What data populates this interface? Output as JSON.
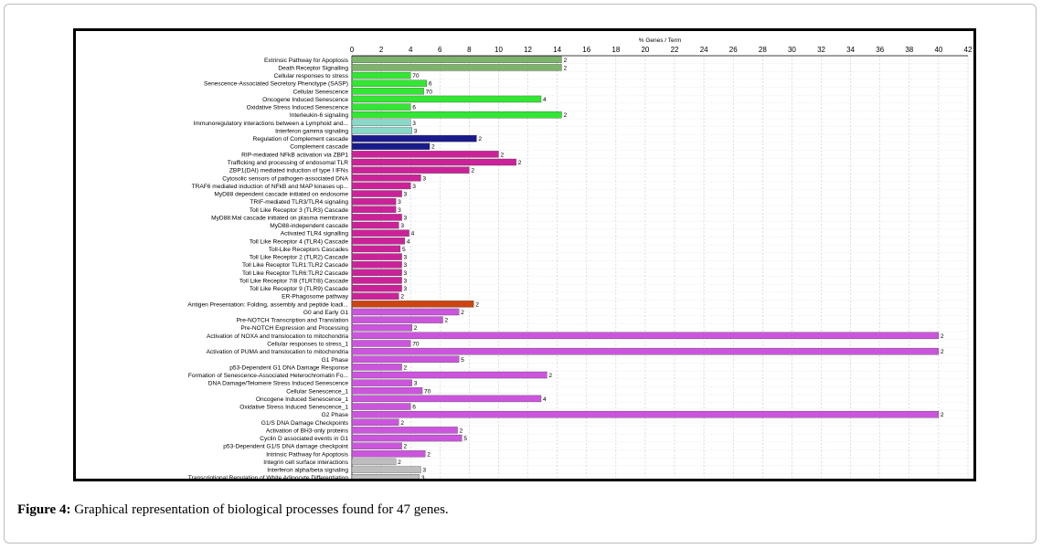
{
  "caption": {
    "label": "Figure 4:",
    "text": " Graphical representation of biological processes found for 47 genes."
  },
  "chart_data": {
    "type": "bar",
    "orientation": "horizontal",
    "title": "% Genes / Term",
    "xlim": [
      0,
      42
    ],
    "xticks": [
      0,
      2,
      4,
      6,
      8,
      10,
      12,
      14,
      16,
      18,
      20,
      22,
      24,
      26,
      28,
      30,
      32,
      34,
      36,
      38,
      40,
      42
    ],
    "grid": true,
    "categories": [
      "Extrinsic Pathway for Apoptosis",
      "Death Receptor Signalling",
      "Cellular responses to stress",
      "Senescence-Associated Secretory Phenotype (SASP)",
      "Cellular Senescence",
      "Oncogene Induced Senescence",
      "Oxidative Stress Induced Senescence",
      "Interleukin-6 signaling",
      "Immunoregulatory interactions between a Lymphoid and...",
      "Interferon gamma signaling",
      "Regulation of Complement cascade",
      "Complement cascade",
      "RIP-mediated NFkB activation via ZBP1",
      "Trafficking and processing of endosomal TLR",
      "ZBP1(DAI) mediated induction of type I IFNs",
      "Cytosolic sensors of pathogen-associated DNA",
      "TRAF6 mediated induction of NFkB and MAP kinases up...",
      "MyD88 dependent cascade initiated on endosome",
      "TRIF-mediated TLR3/TLR4 signaling",
      "Toll Like Receptor 3 (TLR3) Cascade",
      "MyD88:Mal cascade initiated on plasma membrane",
      "MyD88-independent cascade",
      "Activated TLR4 signalling",
      "Toll Like Receptor 4 (TLR4) Cascade",
      "Toll-Like Receptors Cascades",
      "Toll Like Receptor 2 (TLR2) Cascade",
      "Toll Like Receptor TLR1:TLR2 Cascade",
      "Toll Like Receptor TLR6:TLR2 Cascade",
      "Toll Like Receptor 7/8 (TLR7/8) Cascade",
      "Toll Like Receptor 9 (TLR9) Cascade",
      "ER-Phagosome pathway",
      "Antigen Presentation: Folding, assembly and peptide loadi...",
      "G0 and Early G1",
      "Pre-NOTCH Transcription and Translation",
      "Pre-NOTCH Expression and Processing",
      "Activation of NOXA and translocation to mitochondria",
      "Cellular responses to stress_1",
      "Activation of PUMA and translocation to mitochondria",
      "G1 Phase",
      "p53-Dependent G1 DNA Damage Response",
      "Formation of Senescence-Associated Heterochromatin Fo...",
      "DNA Damage/Telomere Stress Induced Senescence",
      "Cellular Senescence_1",
      "Oncogene Induced Senescence_1",
      "Oxidative Stress Induced Senescence_1",
      "G2 Phase",
      "G1/S DNA Damage Checkpoints",
      "Activation of BH3-only proteins",
      "Cyclin D associated events in G1",
      "p53-Dependent G1/S DNA damage checkpoint",
      "Intrinsic Pathway for Apoptosis",
      "Integrin cell surface interactions",
      "Interferon alpha/beta signaling",
      "Transcriptional Regulation of White Adipocyte Differentiation"
    ],
    "values": [
      14.3,
      14.3,
      4.0,
      5.1,
      4.9,
      12.9,
      4.0,
      14.3,
      4.0,
      4.1,
      8.5,
      5.3,
      10.0,
      11.2,
      8.0,
      4.7,
      4.0,
      3.4,
      3.0,
      3.0,
      3.4,
      3.2,
      3.9,
      3.6,
      3.3,
      3.4,
      3.4,
      3.4,
      3.4,
      3.4,
      3.2,
      8.3,
      7.3,
      6.2,
      4.1,
      40.0,
      4.0,
      40.0,
      7.3,
      3.4,
      13.3,
      4.1,
      4.8,
      12.9,
      4.0,
      40.0,
      3.2,
      7.2,
      7.5,
      3.4,
      5.0,
      3.0,
      4.7,
      4.6
    ],
    "bar_labels": [
      "2",
      "2",
      "70",
      "6",
      "70",
      "4",
      "6",
      "2",
      "3",
      "3",
      "2",
      "2",
      "2",
      "2",
      "2",
      "3",
      "3",
      "3",
      "3",
      "3",
      "3",
      "3",
      "4",
      "4",
      "5",
      "3",
      "3",
      "3",
      "3",
      "3",
      "2",
      "2",
      "2",
      "2",
      "2",
      "2",
      "70",
      "2",
      "5",
      "2",
      "2",
      "3",
      "70",
      "4",
      "6",
      "2",
      "2",
      "2",
      "5",
      "2",
      "2",
      "2",
      "3",
      "3"
    ],
    "colors": [
      "#7db36b",
      "#7db36b",
      "#33e633",
      "#33e633",
      "#33e633",
      "#33e633",
      "#33e633",
      "#33e633",
      "#88d8c8",
      "#88d8c8",
      "#1a1a8c",
      "#1a1a8c",
      "#cc2299",
      "#cc2299",
      "#cc2299",
      "#cc2299",
      "#cc2299",
      "#cc2299",
      "#cc2299",
      "#cc2299",
      "#cc2299",
      "#cc2299",
      "#cc2299",
      "#cc2299",
      "#cc2299",
      "#cc2299",
      "#cc2299",
      "#cc2299",
      "#cc2299",
      "#cc2299",
      "#cc2299",
      "#cc4411",
      "#cc55dd",
      "#cc55dd",
      "#cc55dd",
      "#cc55dd",
      "#cc55dd",
      "#cc55dd",
      "#cc55dd",
      "#cc55dd",
      "#cc55dd",
      "#cc55dd",
      "#cc55dd",
      "#cc55dd",
      "#cc55dd",
      "#cc55dd",
      "#cc55dd",
      "#cc55dd",
      "#cc55dd",
      "#cc55dd",
      "#cc55dd",
      "#bdbdbd",
      "#bdbdbd",
      "#bdbdbd"
    ]
  }
}
